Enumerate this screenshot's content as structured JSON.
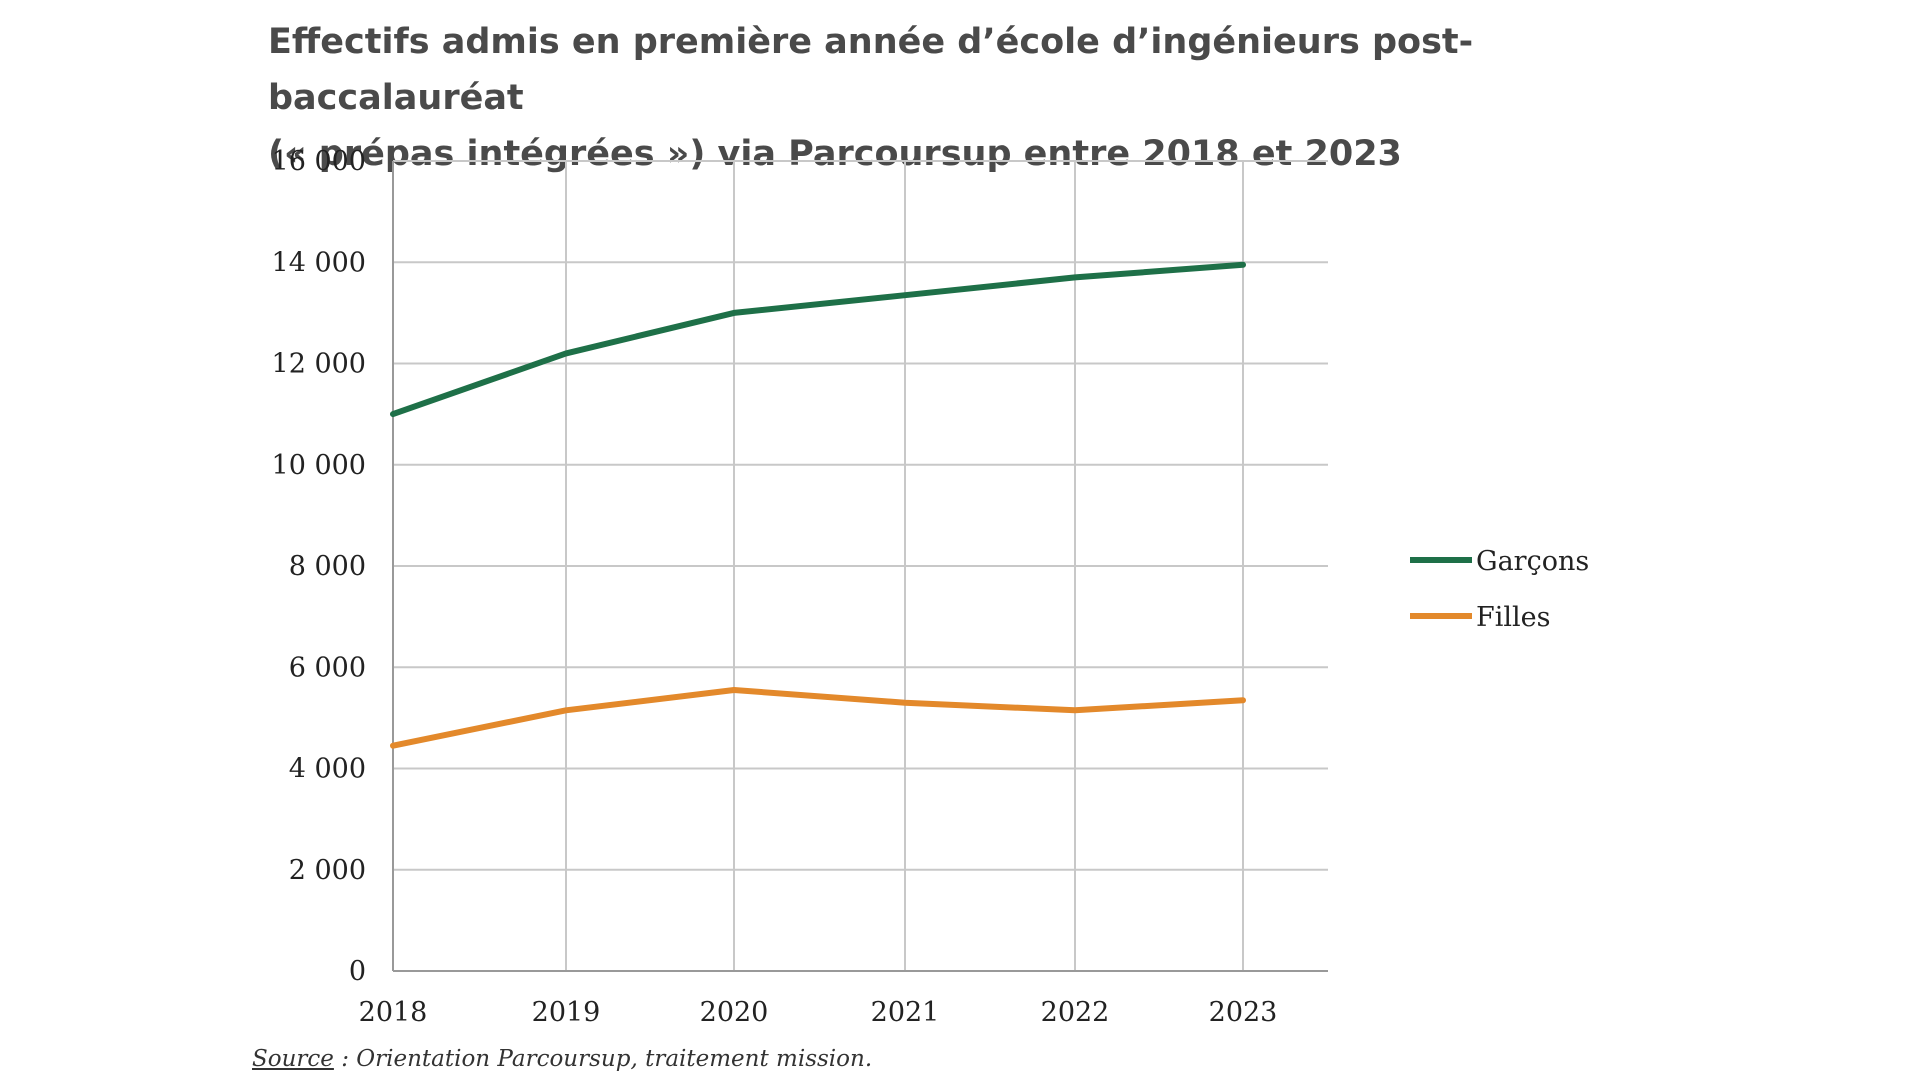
{
  "title_line1": "Effectifs admis en première année d’école d’ingénieurs post-baccalauréat",
  "title_line2": "(« prépas intégrées ») via Parcoursup entre 2018 et 2023",
  "source_label": "Source",
  "source_text": " : Orientation Parcoursup, traitement mission.",
  "colors": {
    "garcons": "#1e7048",
    "filles": "#e3892b",
    "grid": "#c8c8c8",
    "axis": "#999999"
  },
  "chart_data": {
    "type": "line",
    "x": [
      "2018",
      "2019",
      "2020",
      "2021",
      "2022",
      "2023"
    ],
    "y_ticks": [
      "0",
      "2 000",
      "4 000",
      "6 000",
      "8 000",
      "10 000",
      "12 000",
      "14 000",
      "16 000"
    ],
    "ylim": [
      0,
      16000
    ],
    "grid": true,
    "legend_position": "right",
    "series": [
      {
        "name": "Garçons",
        "color": "#1e7048",
        "values": [
          11000,
          12200,
          13000,
          13350,
          13700,
          13950
        ]
      },
      {
        "name": "Filles",
        "color": "#e3892b",
        "values": [
          4450,
          5150,
          5550,
          5300,
          5150,
          5350
        ]
      }
    ]
  }
}
